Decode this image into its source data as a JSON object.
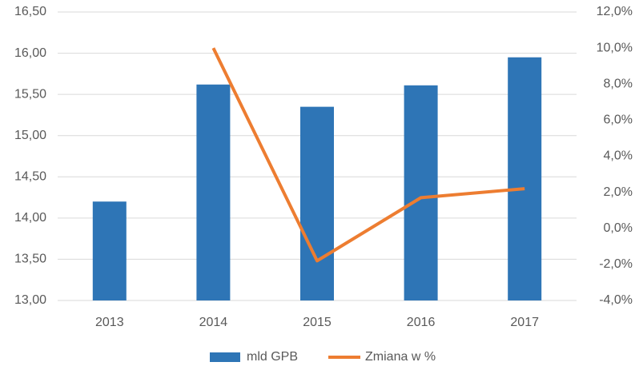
{
  "chart_data": {
    "type": "bar-line",
    "categories": [
      "2013",
      "2014",
      "2015",
      "2016",
      "2017"
    ],
    "series": [
      {
        "name": "mld GPB",
        "color": "#2e75b6",
        "type": "bar",
        "values": [
          14.2,
          15.62,
          15.35,
          15.61,
          15.95
        ]
      },
      {
        "name": "Zmiana w %",
        "color": "#ed7d31",
        "type": "line",
        "axis": "y2",
        "values": [
          null,
          10.0,
          -1.8,
          1.7,
          2.2
        ]
      }
    ],
    "ylim": [
      13.0,
      16.5
    ],
    "yticks": [
      {
        "value": 13.0,
        "label": "13,00"
      },
      {
        "value": 13.5,
        "label": "13,50"
      },
      {
        "value": 14.0,
        "label": "14,00"
      },
      {
        "value": 14.5,
        "label": "14,50"
      },
      {
        "value": 15.0,
        "label": "15,00"
      },
      {
        "value": 15.5,
        "label": "15,50"
      },
      {
        "value": 16.0,
        "label": "16,00"
      },
      {
        "value": 16.5,
        "label": "16,50"
      }
    ],
    "y2lim": [
      -4,
      12
    ],
    "y2ticks": [
      {
        "value": -4,
        "label": "-4,0%"
      },
      {
        "value": -2,
        "label": "-2,0%"
      },
      {
        "value": 0,
        "label": "0,0%"
      },
      {
        "value": 2,
        "label": "2,0%"
      },
      {
        "value": 4,
        "label": "4,0%"
      },
      {
        "value": 6,
        "label": "6,0%"
      },
      {
        "value": 8,
        "label": "8,0%"
      },
      {
        "value": 10,
        "label": "10,0%"
      },
      {
        "value": 12,
        "label": "12,0%"
      }
    ],
    "grid": true,
    "legend": "bottom"
  }
}
